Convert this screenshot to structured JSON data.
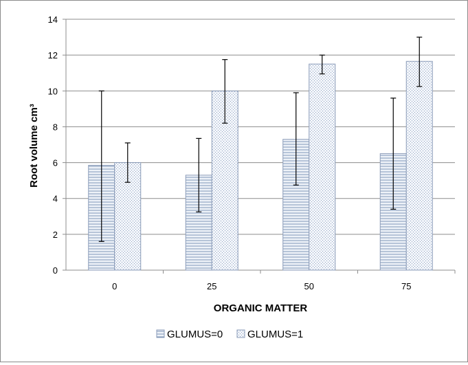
{
  "chart_data": {
    "type": "bar",
    "title": "",
    "xlabel": "ORGANIC MATTER",
    "ylabel": "Root volume cm³",
    "categories": [
      "0",
      "25",
      "50",
      "75"
    ],
    "ylim": [
      0,
      14
    ],
    "yticks": [
      0,
      2,
      4,
      6,
      8,
      10,
      12,
      14
    ],
    "grid": true,
    "legend": "bottom",
    "series": [
      {
        "name": "GLUMUS=0",
        "values": [
          5.85,
          5.3,
          7.3,
          6.5
        ],
        "error_low": [
          1.6,
          3.25,
          4.75,
          3.4
        ],
        "error_high": [
          10.0,
          7.35,
          9.9,
          9.6
        ],
        "fill": "#c7d3e5",
        "stroke": "#8a9bb8",
        "pattern": "horizontal-lines"
      },
      {
        "name": "GLUMUS=1",
        "values": [
          6.0,
          10.0,
          11.5,
          11.65
        ],
        "error_low": [
          4.9,
          8.2,
          10.95,
          10.25
        ],
        "error_high": [
          7.1,
          11.75,
          12.0,
          13.0
        ],
        "fill": "#dfe6f0",
        "stroke": "#8a9bb8",
        "pattern": "dotted"
      }
    ]
  }
}
